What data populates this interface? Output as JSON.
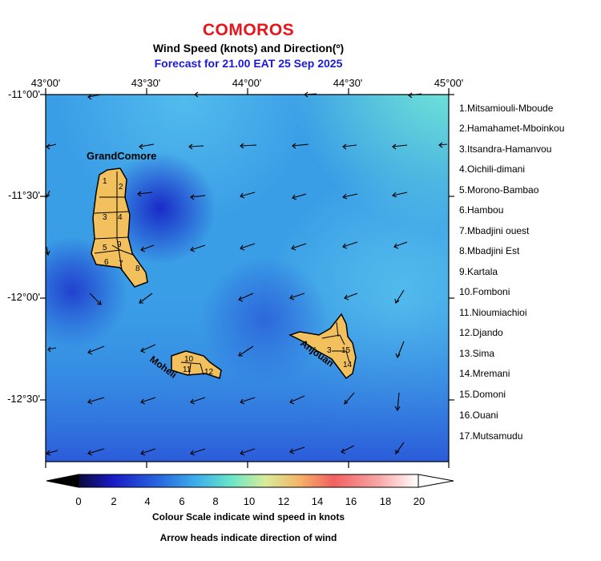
{
  "title": "COMOROS",
  "subtitle": "Wind Speed (knots) and Direction(º)",
  "forecast": "Forecast for  21.00 EAT 25 Sep 2025",
  "lon_ticks": [
    "43°00'",
    "43°30'",
    "44°00'",
    "44°30'",
    "45°00'"
  ],
  "lat_ticks": [
    "-11°00'",
    "-11°30'",
    "-12°00'",
    "-12°30'"
  ],
  "place_labels": {
    "grand_comore": "GrandComore",
    "moheli": "Moheli",
    "anjouan": "Anjouan"
  },
  "region_numbers": {
    "grand_comore": [
      "1",
      "2",
      "3",
      "4",
      "5",
      "6",
      "7",
      "8",
      "9"
    ],
    "moheli": [
      "10",
      "11",
      "12"
    ],
    "anjouan": [
      "3",
      "15",
      "14"
    ]
  },
  "region_legend": [
    "1.Mitsamiouli-Mboude",
    "2.Hamahamet-Mboinkou",
    "3.Itsandra-Hamanvou",
    "4.Oichili-dimani",
    "5.Morono-Bambao",
    "6.Hambou",
    "7.Mbadjini ouest",
    "8.Mbadjini Est",
    "9.Kartala",
    "10.Fomboni",
    "11.Nioumiachioi",
    "12.Djando",
    "13.Sima",
    "14.Mremani",
    "15.Domoni",
    "16.Ouani",
    "17.Mutsamudu"
  ],
  "colorbar": {
    "ticks": [
      "0",
      "2",
      "4",
      "6",
      "8",
      "10",
      "12",
      "14",
      "16",
      "18",
      "20"
    ],
    "range": [
      0,
      20
    ],
    "colors": [
      "#0a0a2a",
      "#1a1acc",
      "#2e6fe0",
      "#3fb0ea",
      "#6ee8c8",
      "#e8e890",
      "#f0a060",
      "#f06060",
      "#f8a0a0",
      "#ffffff"
    ]
  },
  "caption_scale": "Colour Scale indicate wind speed in knots",
  "caption_arrows": "Arrow heads indicate direction of wind",
  "colors": {
    "title": "#e8141c",
    "forecast": "#1a1ad6",
    "land": "#f2c15e"
  }
}
